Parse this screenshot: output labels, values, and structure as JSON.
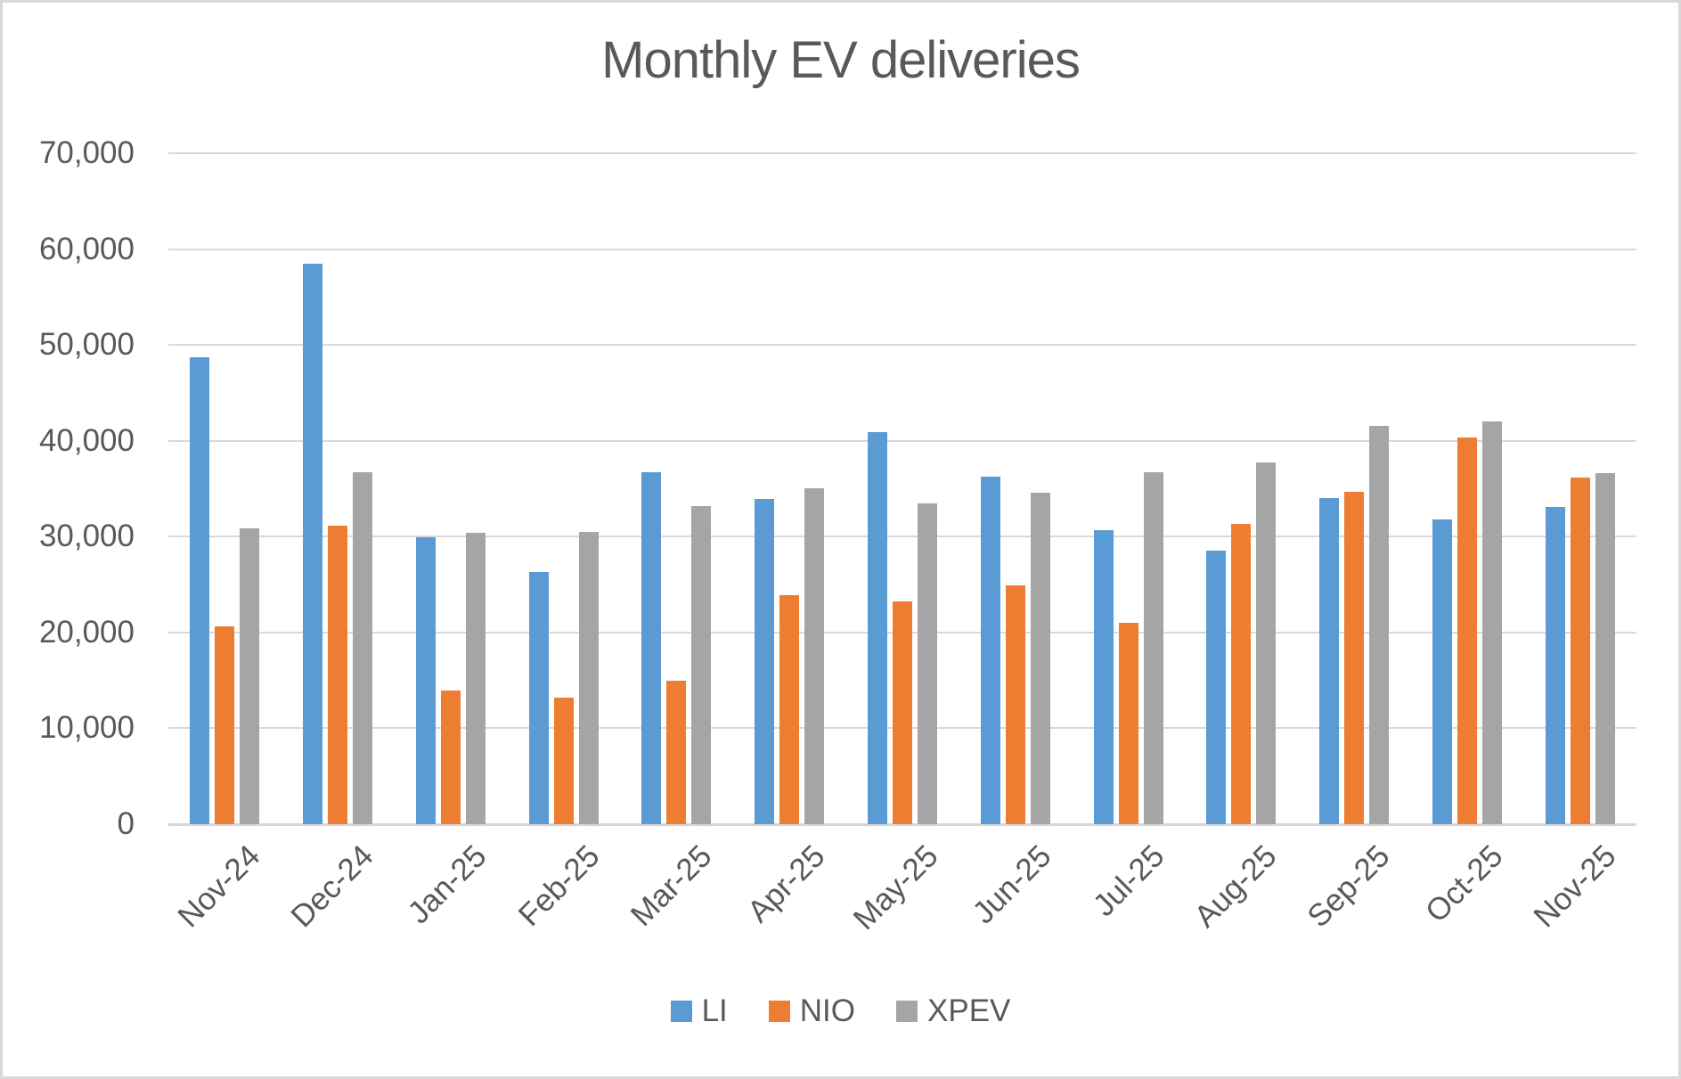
{
  "frame": {
    "background_color": "#FFFFFF",
    "border_color": "#D8D8D8"
  },
  "chart_data": {
    "type": "bar",
    "title": "Monthly EV deliveries",
    "categories": [
      "Nov-24",
      "Dec-24",
      "Jan-25",
      "Feb-25",
      "Mar-25",
      "Apr-25",
      "May-25",
      "Jun-25",
      "Jul-25",
      "Aug-25",
      "Sep-25",
      "Oct-25",
      "Nov-25"
    ],
    "series": [
      {
        "name": "LI",
        "color": "#5B9BD5",
        "values": [
          48700,
          58500,
          29900,
          26300,
          36700,
          33900,
          40900,
          36300,
          30700,
          28500,
          34000,
          31800,
          33100
        ]
      },
      {
        "name": "NIO",
        "color": "#ED7D31",
        "values": [
          20600,
          31100,
          13900,
          13200,
          15000,
          23900,
          23200,
          24900,
          21000,
          31300,
          34700,
          40300,
          36200
        ]
      },
      {
        "name": "XPEV",
        "color": "#A5A5A5",
        "values": [
          30900,
          36700,
          30400,
          30500,
          33200,
          35000,
          33500,
          34600,
          36700,
          37700,
          41600,
          42000,
          36600
        ]
      }
    ],
    "xlabel": "",
    "ylabel": "",
    "ylim": [
      0,
      70000
    ],
    "y_tick_step": 10000,
    "y_tick_labels_top_to_bottom": [
      "70,000",
      "60,000",
      "50,000",
      "40,000",
      "30,000",
      "20,000",
      "10,000",
      "0"
    ],
    "grid": "horizontal",
    "gridline_color": "#D9D9D9",
    "text_color": "#595959",
    "legend_position": "bottom",
    "legend_entries": [
      "LI",
      "NIO",
      "XPEV"
    ]
  }
}
